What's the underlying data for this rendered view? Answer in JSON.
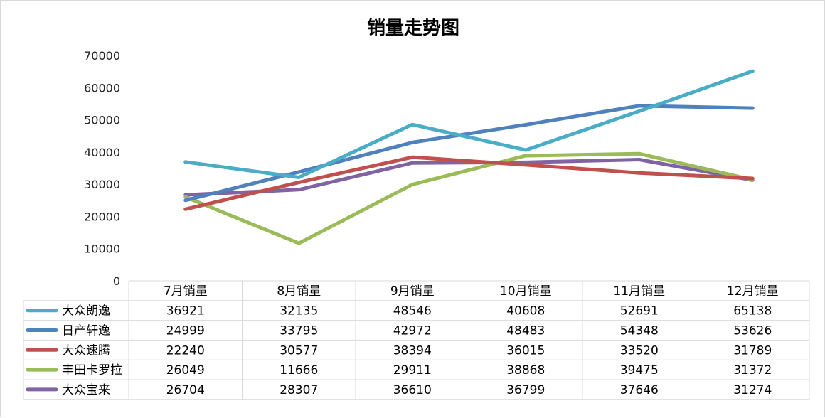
{
  "chart_data": {
    "type": "line",
    "title": "销量走势图",
    "categories": [
      "7月销量",
      "8月销量",
      "9月销量",
      "10月销量",
      "11月销量",
      "12月销量"
    ],
    "ylim": [
      0,
      70000
    ],
    "yticks": [
      0,
      10000,
      20000,
      30000,
      40000,
      50000,
      60000,
      70000
    ],
    "ytick_labels": [
      "0",
      "10000",
      "20000",
      "30000",
      "40000",
      "50000",
      "60000",
      "70000"
    ],
    "grid": false,
    "legend": "data-table-left",
    "series": [
      {
        "name": "大众朗逸",
        "color": "#4bacc6",
        "values": [
          36921,
          32135,
          48546,
          40608,
          52691,
          65138
        ],
        "labels": [
          "36921",
          "32135",
          "48546",
          "40608",
          "52691",
          "65138"
        ]
      },
      {
        "name": "日产轩逸",
        "color": "#4f81bd",
        "values": [
          24999,
          33795,
          42972,
          48483,
          54348,
          53626
        ],
        "labels": [
          "24999",
          "33795",
          "42972",
          "48483",
          "54348",
          "53626"
        ]
      },
      {
        "name": "大众速腾",
        "color": "#c0504d",
        "values": [
          22240,
          30577,
          38394,
          36015,
          33520,
          31789
        ],
        "labels": [
          "22240",
          "30577",
          "38394",
          "36015",
          "33520",
          "31789"
        ]
      },
      {
        "name": "丰田卡罗拉",
        "color": "#9bbb59",
        "values": [
          26049,
          11666,
          29911,
          38868,
          39475,
          31372
        ],
        "labels": [
          "26049",
          "11666",
          "29911",
          "38868",
          "39475",
          "31372"
        ]
      },
      {
        "name": "大众宝来",
        "color": "#8064a2",
        "values": [
          26704,
          28307,
          36610,
          36799,
          37646,
          31274
        ],
        "labels": [
          "26704",
          "28307",
          "36610",
          "36799",
          "37646",
          "31274"
        ]
      }
    ]
  }
}
